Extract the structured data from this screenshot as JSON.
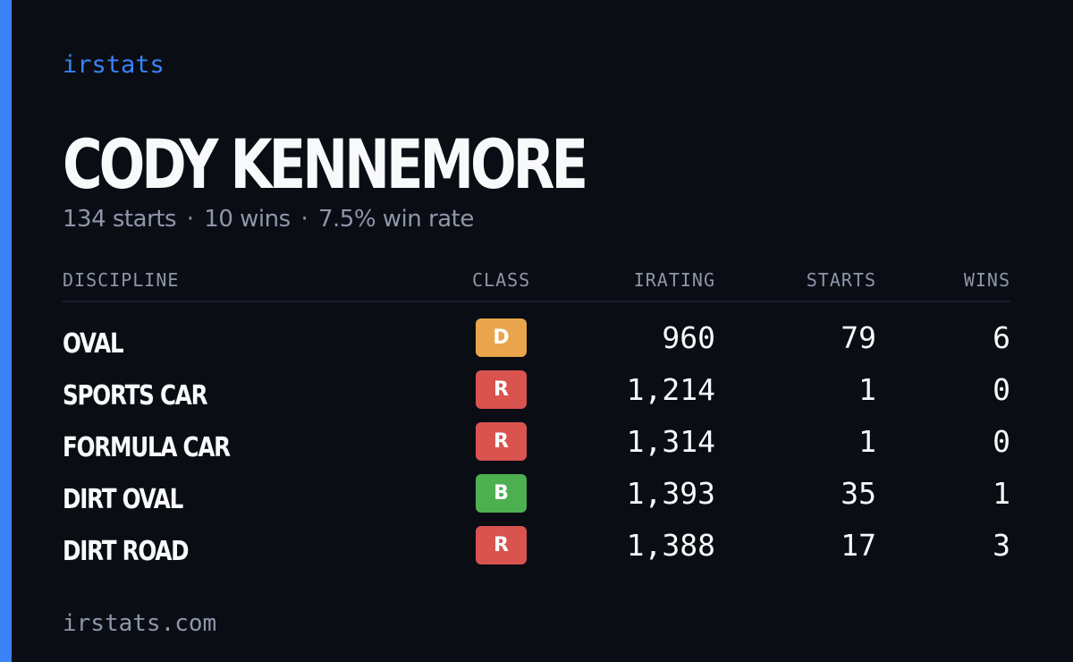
{
  "brand": "irstats",
  "driver": {
    "name": "CODY KENNEMORE"
  },
  "summary": {
    "starts": "134 starts",
    "wins": "10 wins",
    "win_rate": "7.5% win rate",
    "separator": "·"
  },
  "colors": {
    "accent": "#3b82f6",
    "background": "#0a0d14",
    "muted": "#8e96a8",
    "class_D": "#e8a54b",
    "class_R": "#d9534f",
    "class_B": "#4caf50"
  },
  "table": {
    "headers": {
      "discipline": "DISCIPLINE",
      "class": "CLASS",
      "irating": "IRATING",
      "starts": "STARTS",
      "wins": "WINS"
    },
    "rows": [
      {
        "discipline": "OVAL",
        "class": "D",
        "class_color": "#e8a54b",
        "irating": "960",
        "starts": "79",
        "wins": "6"
      },
      {
        "discipline": "SPORTS CAR",
        "class": "R",
        "class_color": "#d9534f",
        "irating": "1,214",
        "starts": "1",
        "wins": "0"
      },
      {
        "discipline": "FORMULA CAR",
        "class": "R",
        "class_color": "#d9534f",
        "irating": "1,314",
        "starts": "1",
        "wins": "0"
      },
      {
        "discipline": "DIRT OVAL",
        "class": "B",
        "class_color": "#4caf50",
        "irating": "1,393",
        "starts": "35",
        "wins": "1"
      },
      {
        "discipline": "DIRT ROAD",
        "class": "R",
        "class_color": "#d9534f",
        "irating": "1,388",
        "starts": "17",
        "wins": "3"
      }
    ]
  },
  "footer": {
    "url": "irstats.com"
  }
}
